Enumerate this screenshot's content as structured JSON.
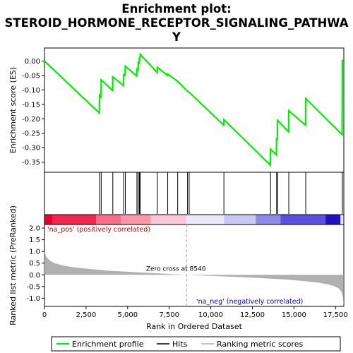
{
  "chart_data": [
    {
      "type": "line",
      "title": "Enrichment plot:\nSTEROID_HORMONE_RECEPTOR_SIGNALING_PATHWAY",
      "title_lines": [
        "Enrichment plot:",
        "STEROID_HORMONE_RECEPTOR_SIGNALING_PATHWA",
        "Y"
      ],
      "ylabel": "Enrichment score (ES)",
      "xlim": [
        0,
        18000
      ],
      "ylim": [
        -0.385,
        0.045
      ],
      "yticks": [
        0.0,
        -0.05,
        -0.1,
        -0.15,
        -0.2,
        -0.25,
        -0.3,
        -0.35
      ],
      "ytick_labels": [
        "0.00",
        "-0.05",
        "-0.10",
        "-0.15",
        "-0.20",
        "-0.25",
        "-0.30",
        "-0.35"
      ],
      "grid": false,
      "series": [
        {
          "name": "Enrichment profile",
          "color": "#00ee00",
          "x": [
            0,
            3300,
            3310,
            3400,
            3410,
            4100,
            4110,
            4750,
            4760,
            4850,
            4860,
            5550,
            5560,
            5630,
            5640,
            5700,
            5710,
            5750,
            5760,
            6780,
            6790,
            7400,
            7410,
            8000,
            8010,
            8600,
            8700,
            10780,
            10790,
            13580,
            13590,
            13950,
            13960,
            14000,
            14010,
            14680,
            14690,
            15700,
            15710,
            17900,
            17910,
            17960
          ],
          "y": [
            0.0,
            -0.18,
            -0.12,
            -0.125,
            -0.065,
            -0.102,
            -0.055,
            -0.085,
            -0.047,
            -0.05,
            -0.018,
            -0.052,
            -0.028,
            -0.032,
            -0.005,
            -0.008,
            0.01,
            0.01,
            0.023,
            -0.04,
            -0.022,
            -0.05,
            -0.045,
            -0.07,
            -0.07,
            -0.105,
            -0.108,
            -0.222,
            -0.203,
            -0.36,
            -0.305,
            -0.325,
            -0.27,
            -0.27,
            -0.205,
            -0.245,
            -0.172,
            -0.222,
            -0.13,
            -0.255,
            0.002,
            0.002
          ]
        }
      ]
    },
    {
      "type": "scatter",
      "name": "Hits",
      "hit_positions": [
        3310,
        3410,
        4110,
        4760,
        4860,
        5560,
        5640,
        5710,
        5760,
        6790,
        7410,
        8010,
        8600,
        8700,
        10790,
        13590,
        13960,
        14010,
        14690,
        15710,
        17910
      ],
      "xlim": [
        0,
        18000
      ]
    },
    {
      "type": "heatmap",
      "name": "ranking color bar",
      "segments": [
        {
          "x0": 0,
          "x1": 500,
          "color": "#e8002a"
        },
        {
          "x0": 500,
          "x1": 3100,
          "color": "#f4254f"
        },
        {
          "x0": 3100,
          "x1": 4600,
          "color": "#f86e86"
        },
        {
          "x0": 4600,
          "x1": 6400,
          "color": "#fa98aa"
        },
        {
          "x0": 6400,
          "x1": 8540,
          "color": "#fbc6d8"
        },
        {
          "x0": 8540,
          "x1": 10800,
          "color": "#e8e8f8"
        },
        {
          "x0": 10800,
          "x1": 12700,
          "color": "#c8c8f0"
        },
        {
          "x0": 12700,
          "x1": 14200,
          "color": "#8c8ce8"
        },
        {
          "x0": 14200,
          "x1": 16900,
          "color": "#5a50e0"
        },
        {
          "x0": 16900,
          "x1": 17800,
          "color": "#2010c8"
        },
        {
          "x0": 17800,
          "x1": 18000,
          "color": "#e8e8f8"
        }
      ],
      "pos_label": "'na_pos' (positively correlated)",
      "neg_label": "'na_neg' (negatively correlated)"
    },
    {
      "type": "area",
      "name": "Ranking metric scores",
      "xlabel": "Rank in Ordered Dataset",
      "ylabel": "Ranked list metric (PreRanked)",
      "xlim": [
        0,
        18000
      ],
      "ylim": [
        -1.35,
        2.15
      ],
      "xticks": [
        0,
        2500,
        5000,
        7500,
        10000,
        12500,
        15000,
        17500
      ],
      "xtick_labels": [
        "0",
        "2,500",
        "5,000",
        "7,500",
        "10,000",
        "12,500",
        "15,000",
        "17,500"
      ],
      "yticks": [
        2.0,
        1.5,
        1.0,
        0.5,
        0.0,
        -0.5,
        -1.0
      ],
      "ytick_labels": [
        "2.0",
        "1.5",
        "1.0",
        "0.5",
        "0.0",
        "-0.5",
        "-1.0"
      ],
      "x": [
        0,
        100,
        300,
        600,
        1000,
        1500,
        2000,
        3000,
        4000,
        5000,
        6000,
        7000,
        8000,
        8540,
        9500,
        10500,
        11500,
        12500,
        13500,
        14500,
        15500,
        16500,
        17000,
        17400,
        17700,
        17850,
        17950,
        17990
      ],
      "values": [
        1.0,
        0.78,
        0.62,
        0.5,
        0.42,
        0.35,
        0.3,
        0.23,
        0.17,
        0.13,
        0.09,
        0.055,
        0.02,
        0.0,
        -0.03,
        -0.06,
        -0.09,
        -0.12,
        -0.16,
        -0.2,
        -0.26,
        -0.34,
        -0.4,
        -0.48,
        -0.58,
        -0.72,
        -0.95,
        -1.3
      ],
      "color": "#b0b0b0",
      "zero_cross_label": "Zero cross at 8540",
      "zero_cross": 8540
    }
  ],
  "legend": {
    "items": [
      {
        "label": "Enrichment profile",
        "color": "#00ee00"
      },
      {
        "label": "Hits",
        "color": "#000000"
      },
      {
        "label": "Ranking metric scores",
        "color": "#b0b0b0"
      }
    ]
  }
}
